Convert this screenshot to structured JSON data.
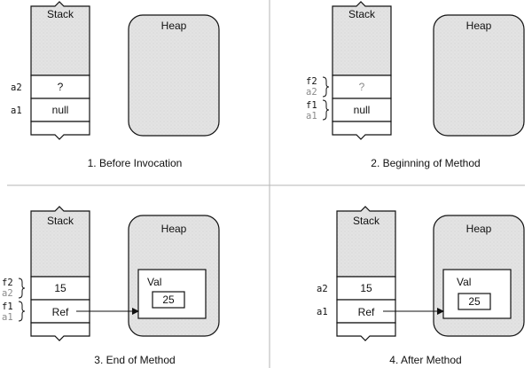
{
  "panels": [
    {
      "caption": "1. Before Invocation",
      "stack_label": "Stack",
      "heap_label": "Heap",
      "slots": [
        {
          "vars": [
            "a2"
          ],
          "value": "?",
          "dim": false
        },
        {
          "vars": [
            "a1"
          ],
          "value": "null",
          "dim": false
        }
      ]
    },
    {
      "caption": "2. Beginning of Method",
      "stack_label": "Stack",
      "heap_label": "Heap",
      "slots": [
        {
          "vars": [
            "f2",
            "a2"
          ],
          "value": "?",
          "dim": true
        },
        {
          "vars": [
            "f1",
            "a1"
          ],
          "value": "null",
          "dim": false
        }
      ]
    },
    {
      "caption": "3. End of Method",
      "stack_label": "Stack",
      "heap_label": "Heap",
      "slots": [
        {
          "vars": [
            "f2",
            "a2"
          ],
          "value": "15",
          "dim": false
        },
        {
          "vars": [
            "f1",
            "a1"
          ],
          "value": "Ref",
          "dim": false
        }
      ],
      "heap_object": {
        "label": "Val",
        "value": "25"
      }
    },
    {
      "caption": "4. After Method",
      "stack_label": "Stack",
      "heap_label": "Heap",
      "slots": [
        {
          "vars": [
            "a2"
          ],
          "value": "15",
          "dim": false
        },
        {
          "vars": [
            "a1"
          ],
          "value": "Ref",
          "dim": false
        }
      ],
      "heap_object": {
        "label": "Val",
        "value": "25"
      }
    }
  ],
  "colors": {
    "fill": "#e3e3e3",
    "line": "#111111",
    "divider": "#b5b5b5",
    "dim_text": "#8a8a8a"
  }
}
